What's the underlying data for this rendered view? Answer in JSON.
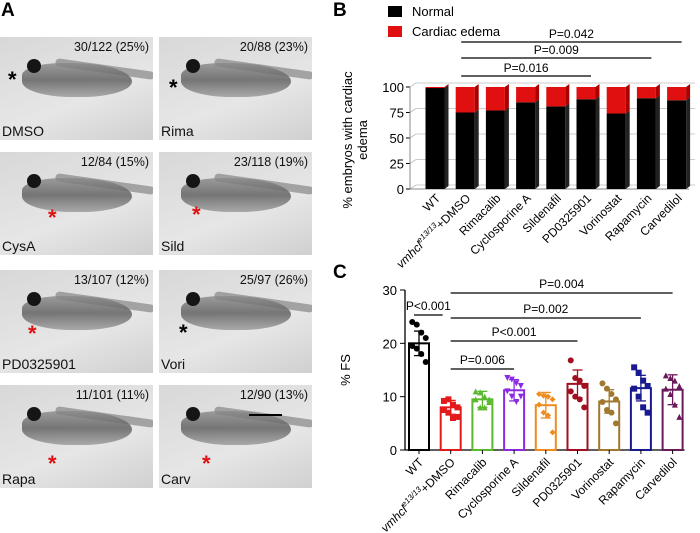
{
  "panel_labels": {
    "a": "A",
    "b": "B",
    "c": "C"
  },
  "photos": [
    {
      "name": "DMSO",
      "fraction": "30/122 (25%)",
      "asterisk_color": "#000000"
    },
    {
      "name": "Rima",
      "fraction": "20/88 (23%)",
      "asterisk_color": "#000000"
    },
    {
      "name": "CysA",
      "fraction": "12/84 (15%)",
      "asterisk_color": "#e01010"
    },
    {
      "name": "Sild",
      "fraction": "23/118 (19%)",
      "asterisk_color": "#e01010"
    },
    {
      "name": "PD0325901",
      "fraction": "13/107 (12%)",
      "asterisk_color": "#e01010"
    },
    {
      "name": "Vori",
      "fraction": "25/97 (26%)",
      "asterisk_color": "#000000"
    },
    {
      "name": "Rapa",
      "fraction": "11/101 (11%)",
      "asterisk_color": "#e01010"
    },
    {
      "name": "Carv",
      "fraction": "12/90 (13%)",
      "asterisk_color": "#e01010"
    }
  ],
  "asterisk": "*",
  "categories": [
    "WT",
    "vmhcl|e13/13|+DMSO",
    "Rimacalib",
    "Cyclosporine A",
    "Sildenafil",
    "PD0325901",
    "Vorinostat",
    "Rapamycin",
    "Carvedilol"
  ],
  "chart_data": [
    {
      "type": "bar",
      "stacked": true,
      "ylabel_lines": [
        "% embryos with cardiac",
        "edema"
      ],
      "ylim": [
        0,
        100
      ],
      "yticks": [
        0,
        25,
        50,
        75,
        100
      ],
      "grid": true,
      "legend_placement": "top-left",
      "series": [
        {
          "name": "Normal",
          "color": "#000000",
          "values": [
            99,
            75,
            77,
            85,
            81,
            88,
            74,
            89,
            87
          ]
        },
        {
          "name": "Cardiac edema",
          "color": "#e01010",
          "values": [
            1,
            25,
            23,
            15,
            19,
            12,
            26,
            11,
            13
          ]
        }
      ],
      "comparisons": [
        {
          "label": "P=0.042",
          "from": 1,
          "to": 8
        },
        {
          "label": "P=0.009",
          "from": 1,
          "to": 7
        },
        {
          "label": "P=0.016",
          "from": 1,
          "to": 5
        }
      ]
    },
    {
      "type": "bar",
      "ylabel": "% FS",
      "ylim": [
        0,
        30
      ],
      "yticks": [
        0,
        10,
        20,
        30
      ],
      "grid": false,
      "groups": [
        {
          "mean": 20.0,
          "sd": 2.3,
          "color": "#000000",
          "marker": "circle",
          "points": [
            24,
            23.5,
            22,
            21,
            19.5,
            19,
            18,
            16.5
          ]
        },
        {
          "mean": 8.0,
          "sd": 1.3,
          "color": "#e31a1c",
          "marker": "square",
          "points": [
            9.2,
            9.5,
            8.5,
            8,
            7.5,
            7,
            6,
            6.2
          ]
        },
        {
          "mean": 9.5,
          "sd": 1.5,
          "color": "#5ab82e",
          "marker": "triangle",
          "points": [
            11,
            10.8,
            10,
            9.5,
            9.5,
            8,
            8,
            9
          ]
        },
        {
          "mean": 11.2,
          "sd": 2.0,
          "color": "#8a2be2",
          "marker": "triangle-down",
          "points": [
            13.5,
            13.2,
            12.5,
            12,
            11,
            10,
            9,
            10
          ]
        },
        {
          "mean": 8.4,
          "sd": 2.4,
          "color": "#f08c1e",
          "marker": "diamond",
          "points": [
            10.5,
            10.2,
            10,
            9.5,
            8.5,
            7,
            6.5,
            3.3
          ]
        },
        {
          "mean": 12.4,
          "sd": 2.6,
          "color": "#a01020",
          "marker": "circle",
          "points": [
            16.8,
            13.5,
            13,
            12,
            11,
            10,
            9.5,
            8
          ]
        },
        {
          "mean": 9.1,
          "sd": 2.2,
          "color": "#a07830",
          "marker": "circle",
          "points": [
            12.5,
            11.5,
            10.5,
            9.5,
            9,
            7.5,
            7,
            5
          ]
        },
        {
          "mean": 11.6,
          "sd": 2.4,
          "color": "#1a1a90",
          "marker": "square",
          "points": [
            15.5,
            14.5,
            13,
            12,
            11.5,
            10,
            8,
            7
          ]
        },
        {
          "mean": 11.3,
          "sd": 2.8,
          "color": "#6a1a5a",
          "marker": "triangle",
          "points": [
            14,
            13.5,
            13,
            12,
            11.5,
            10.5,
            8.5,
            6.2
          ]
        }
      ],
      "comparisons": [
        {
          "label": "P<0.001",
          "from": 0,
          "to": 1
        },
        {
          "label": "P=0.004",
          "from": 1,
          "to": 8
        },
        {
          "label": "P=0.002",
          "from": 1,
          "to": 7
        },
        {
          "label": "P<0.001",
          "from": 1,
          "to": 5
        },
        {
          "label": "P=0.006",
          "from": 1,
          "to": 3
        }
      ]
    }
  ]
}
